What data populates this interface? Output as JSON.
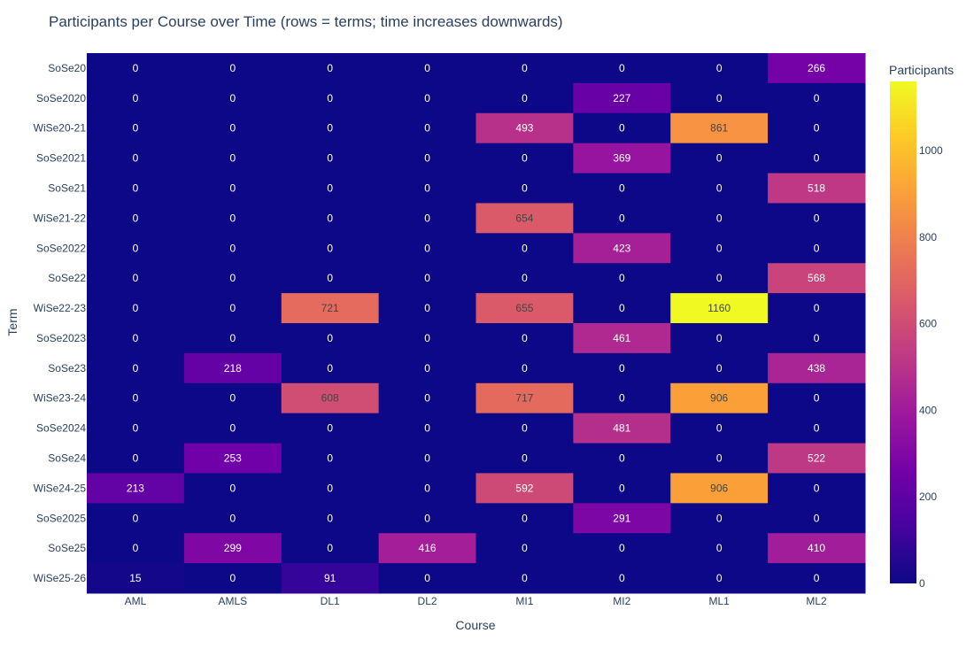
{
  "chart_data": {
    "type": "heatmap",
    "title": "Participants per Course over Time (rows = terms; time increases downwards)",
    "xlabel": "Course",
    "ylabel": "Term",
    "x": [
      "AML",
      "AMLS",
      "DL1",
      "DL2",
      "MI1",
      "MI2",
      "ML1",
      "ML2"
    ],
    "y": [
      "SoSe20",
      "SoSe2020",
      "WiSe20-21",
      "SoSe2021",
      "SoSe21",
      "WiSe21-22",
      "SoSe2022",
      "SoSe22",
      "WiSe22-23",
      "SoSe2023",
      "SoSe23",
      "WiSe23-24",
      "SoSe2024",
      "SoSe24",
      "WiSe24-25",
      "SoSe2025",
      "SoSe25",
      "WiSe25-26"
    ],
    "z": [
      [
        0,
        0,
        0,
        0,
        0,
        0,
        0,
        266
      ],
      [
        0,
        0,
        0,
        0,
        0,
        227,
        0,
        0
      ],
      [
        0,
        0,
        0,
        0,
        493,
        0,
        861,
        0
      ],
      [
        0,
        0,
        0,
        0,
        0,
        369,
        0,
        0
      ],
      [
        0,
        0,
        0,
        0,
        0,
        0,
        0,
        518
      ],
      [
        0,
        0,
        0,
        0,
        654,
        0,
        0,
        0
      ],
      [
        0,
        0,
        0,
        0,
        0,
        423,
        0,
        0
      ],
      [
        0,
        0,
        0,
        0,
        0,
        0,
        0,
        568
      ],
      [
        0,
        0,
        721,
        0,
        655,
        0,
        1160,
        0
      ],
      [
        0,
        0,
        0,
        0,
        0,
        461,
        0,
        0
      ],
      [
        0,
        218,
        0,
        0,
        0,
        0,
        0,
        438
      ],
      [
        0,
        0,
        608,
        0,
        717,
        0,
        906,
        0
      ],
      [
        0,
        0,
        0,
        0,
        0,
        481,
        0,
        0
      ],
      [
        0,
        253,
        0,
        0,
        0,
        0,
        0,
        522
      ],
      [
        213,
        0,
        0,
        0,
        592,
        0,
        906,
        0
      ],
      [
        0,
        0,
        0,
        0,
        0,
        291,
        0,
        0
      ],
      [
        0,
        299,
        0,
        416,
        0,
        0,
        0,
        410
      ],
      [
        15,
        0,
        91,
        0,
        0,
        0,
        0,
        0
      ]
    ],
    "zmin": 0,
    "zmax": 1160,
    "colorscale": "plasma",
    "colorbar": {
      "title": "Participants",
      "ticks": [
        0,
        200,
        400,
        600,
        800,
        1000
      ]
    },
    "text_dark_threshold": 600
  }
}
